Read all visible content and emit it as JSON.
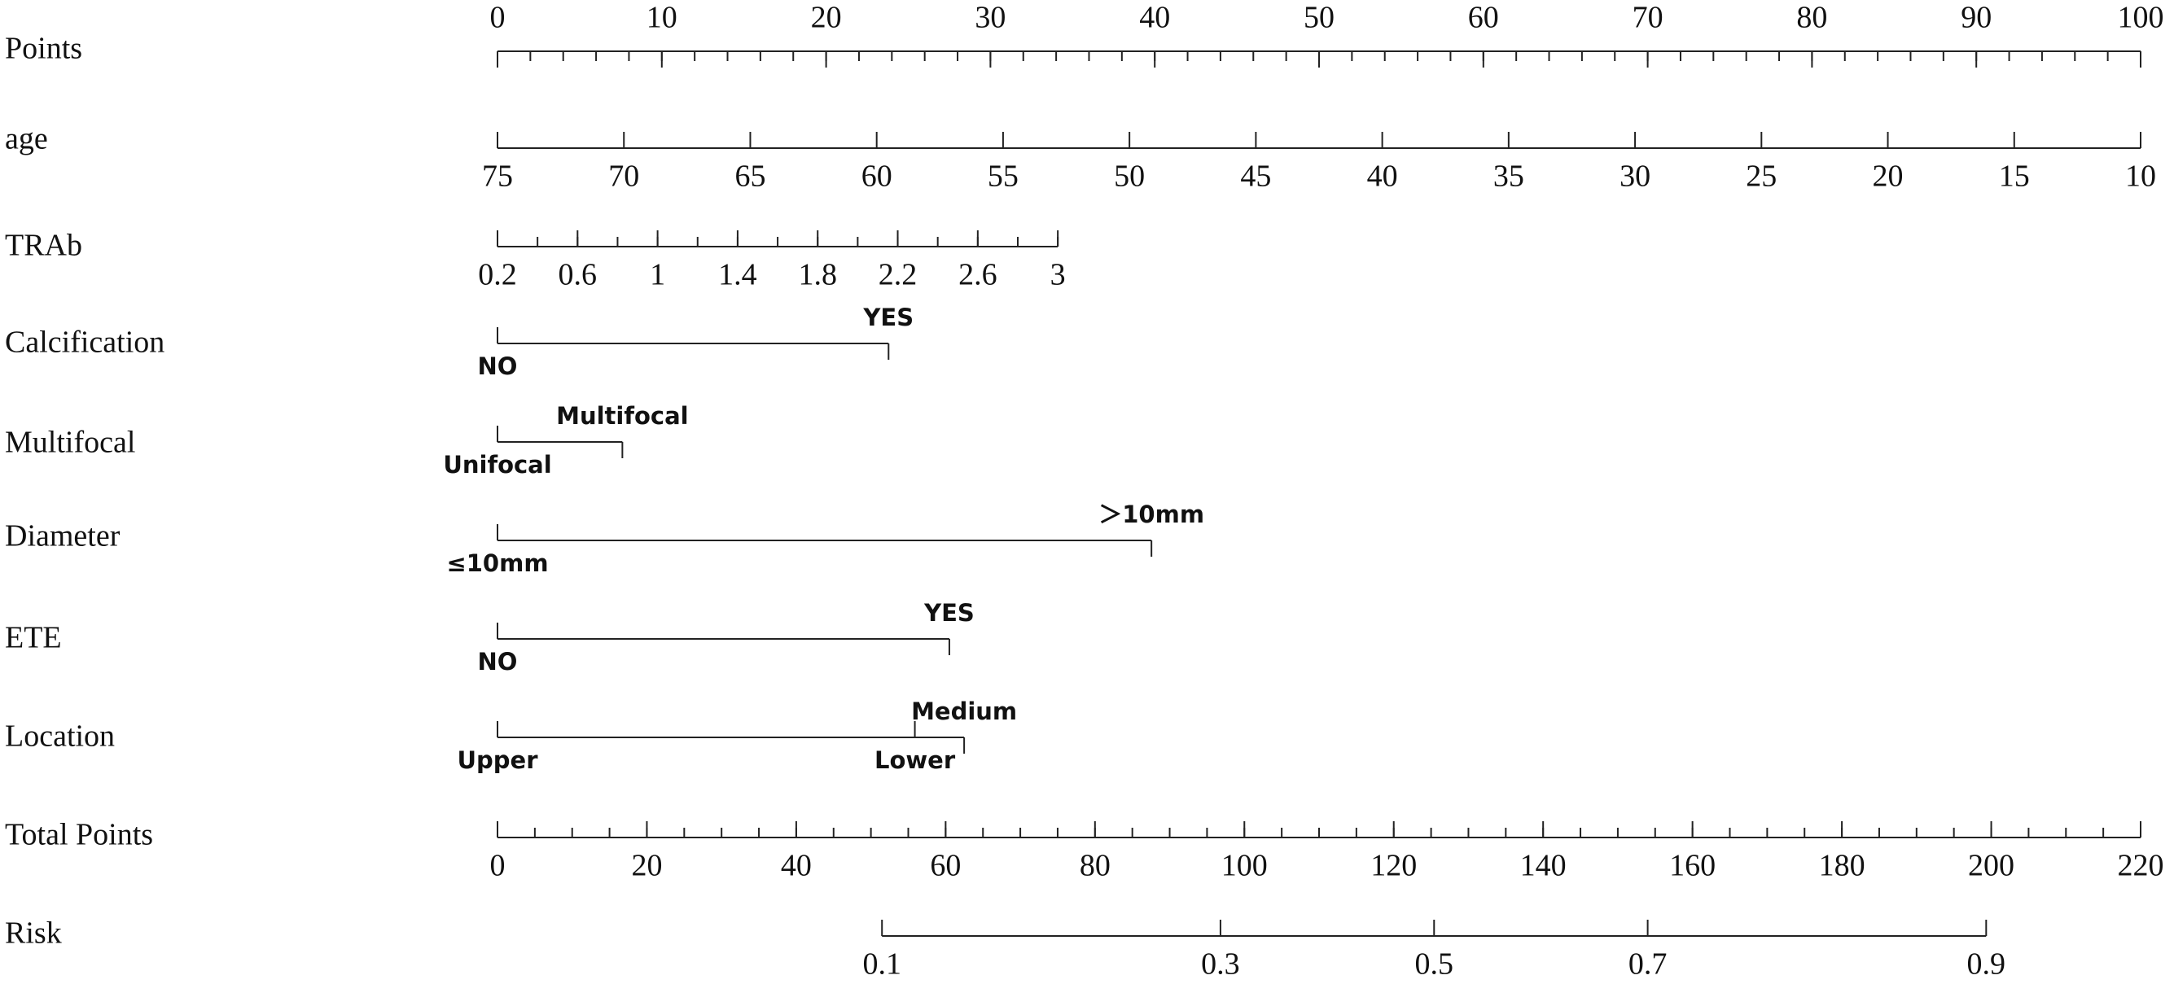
{
  "chart_data": {
    "type": "nomogram",
    "rows": [
      {
        "label": "Points",
        "kind": "scale",
        "label_side": "above",
        "xlim": [
          0,
          100
        ],
        "span": [
          0,
          100
        ],
        "ticks": [
          0,
          10,
          20,
          30,
          40,
          50,
          60,
          70,
          80,
          90,
          100
        ],
        "minor_tick_step": 2
      },
      {
        "label": "age",
        "kind": "scale",
        "label_side": "below",
        "xlim": [
          75,
          10
        ],
        "span": [
          0,
          100
        ],
        "ticks": [
          75,
          70,
          65,
          60,
          55,
          50,
          45,
          40,
          35,
          30,
          25,
          20,
          15,
          10
        ]
      },
      {
        "label": "TRAb",
        "kind": "scale",
        "label_side": "below",
        "xlim": [
          0.2,
          3
        ],
        "span": [
          0,
          34.1
        ],
        "ticks": [
          0.2,
          0.6,
          1,
          1.4,
          1.8,
          2.2,
          2.6,
          3
        ],
        "minor_tick_step": 0.2
      },
      {
        "label": "Calcification",
        "kind": "levels",
        "levels": [
          {
            "label": "NO",
            "points": 0,
            "side": "below"
          },
          {
            "label": "YES",
            "points": 23.8,
            "side": "above"
          }
        ]
      },
      {
        "label": "Multifocal",
        "kind": "levels",
        "levels": [
          {
            "label": "Unifocal",
            "points": 0,
            "side": "below"
          },
          {
            "label": "Multifocal",
            "points": 7.6,
            "side": "above"
          }
        ]
      },
      {
        "label": "Diameter",
        "kind": "levels",
        "levels": [
          {
            "label": "≤10mm",
            "points": 0,
            "side": "below"
          },
          {
            "label": "＞10mm",
            "points": 39.8,
            "side": "above"
          }
        ]
      },
      {
        "label": "ETE",
        "kind": "levels",
        "levels": [
          {
            "label": "NO",
            "points": 0,
            "side": "below"
          },
          {
            "label": "YES",
            "points": 27.5,
            "side": "above"
          }
        ]
      },
      {
        "label": "Location",
        "kind": "levels",
        "levels": [
          {
            "label": "Upper",
            "points": 0,
            "side": "below"
          },
          {
            "label": "Medium",
            "points": 28.4,
            "side": "above"
          },
          {
            "label": "Lower",
            "points": 25.4,
            "side": "below"
          }
        ]
      },
      {
        "label": "Total Points",
        "kind": "scale",
        "label_side": "below",
        "xlim": [
          0,
          220
        ],
        "span": [
          0,
          100
        ],
        "ticks": [
          0,
          20,
          40,
          60,
          80,
          100,
          120,
          140,
          160,
          180,
          200,
          220
        ],
        "minor_tick_step": 5
      },
      {
        "label": "Risk",
        "kind": "placed",
        "label_side": "below",
        "ticks": [
          {
            "value": 0.1,
            "points": 23.4
          },
          {
            "value": 0.3,
            "points": 44.0
          },
          {
            "value": 0.5,
            "points": 57.0
          },
          {
            "value": 0.7,
            "points": 70.0
          },
          {
            "value": 0.9,
            "points": 90.6
          }
        ]
      }
    ]
  }
}
